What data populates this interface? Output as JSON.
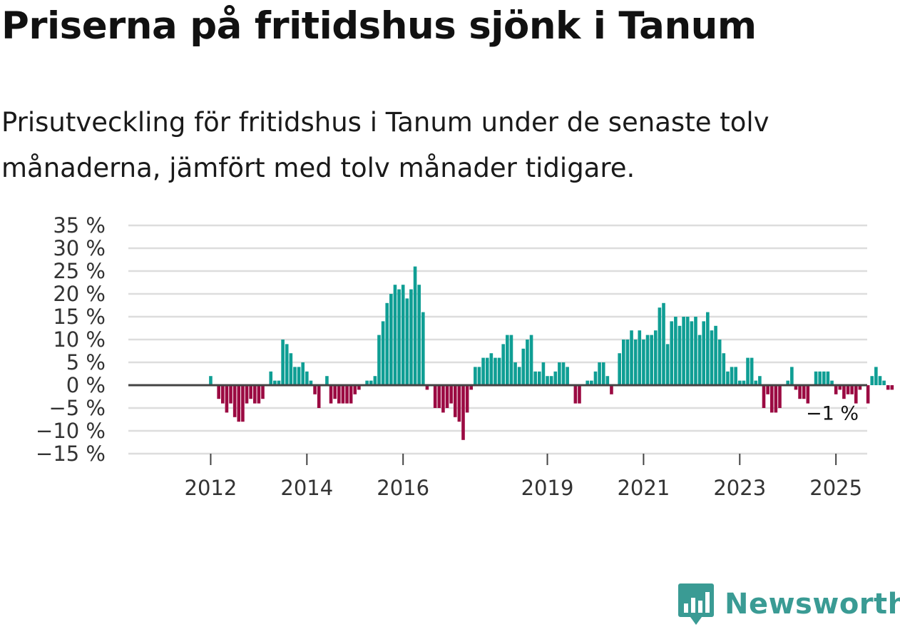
{
  "header": {
    "title": "Priserna på fritidshus sjönk i Tanum",
    "subtitle": "Prisutveckling för fritidshus i Tanum under de senaste tolv månaderna, jämfört med tolv månader tidigare."
  },
  "brand": {
    "name": "Newsworthy"
  },
  "colors": {
    "positive": "#0f9e94",
    "negative": "#9b0a42",
    "grid": "#dddddd",
    "zero_line": "#444444",
    "brand": "#3a9b94"
  },
  "chart_data": {
    "type": "bar",
    "title": "Priserna på fritidshus sjönk i Tanum",
    "xlabel": "",
    "ylabel": "",
    "ylim": [
      -15,
      35
    ],
    "yticks": [
      -15,
      -10,
      -5,
      0,
      5,
      10,
      15,
      20,
      25,
      30,
      35
    ],
    "ytick_labels": [
      "−15 %",
      "−10 %",
      "−5 %",
      "0 %",
      "5 %",
      "10 %",
      "15 %",
      "20 %",
      "25 %",
      "30 %",
      "35 %"
    ],
    "x_start": "2011-01",
    "xticks": [
      {
        "label": "2012",
        "index": 12
      },
      {
        "label": "2014",
        "index": 36
      },
      {
        "label": "2016",
        "index": 60
      },
      {
        "label": "2019",
        "index": 96
      },
      {
        "label": "2021",
        "index": 120
      },
      {
        "label": "2023",
        "index": 144
      },
      {
        "label": "2025",
        "index": 168
      }
    ],
    "last_value_label": "−1 %",
    "values": [
      null,
      null,
      null,
      null,
      null,
      null,
      null,
      null,
      null,
      null,
      null,
      null,
      2,
      0,
      -3,
      -4,
      -6,
      -4,
      -7,
      -8,
      -8,
      -4,
      -3,
      -4,
      -4,
      -3,
      0,
      3,
      1,
      1,
      10,
      9,
      7,
      4,
      4,
      5,
      3,
      1,
      -2,
      -5,
      0,
      2,
      -4,
      -3,
      -4,
      -4,
      -4,
      -4,
      -2,
      -1,
      0,
      1,
      1,
      2,
      11,
      14,
      18,
      20,
      22,
      21,
      22,
      19,
      21,
      26,
      22,
      16,
      -1,
      0,
      -5,
      -5,
      -6,
      -5,
      -4,
      -7,
      -8,
      -12,
      -6,
      -1,
      4,
      4,
      6,
      6,
      7,
      6,
      6,
      9,
      11,
      11,
      5,
      4,
      8,
      10,
      11,
      3,
      3,
      5,
      2,
      2,
      3,
      5,
      5,
      4,
      0,
      -4,
      -4,
      0,
      1,
      1,
      3,
      5,
      5,
      2,
      -2,
      0,
      7,
      10,
      10,
      12,
      10,
      12,
      10,
      11,
      11,
      12,
      17,
      18,
      9,
      14,
      15,
      13,
      15,
      15,
      14,
      15,
      11,
      14,
      16,
      12,
      13,
      10,
      7,
      3,
      4,
      4,
      1,
      1,
      6,
      6,
      1,
      2,
      -5,
      -2,
      -6,
      -6,
      -5,
      0,
      1,
      4,
      -1,
      -3,
      -3,
      -4,
      0,
      3,
      3,
      3,
      3,
      1,
      -2,
      -1,
      -3,
      -2,
      -2,
      -4,
      -1,
      0,
      -4,
      2,
      4,
      2,
      1,
      -1,
      -1
    ]
  }
}
